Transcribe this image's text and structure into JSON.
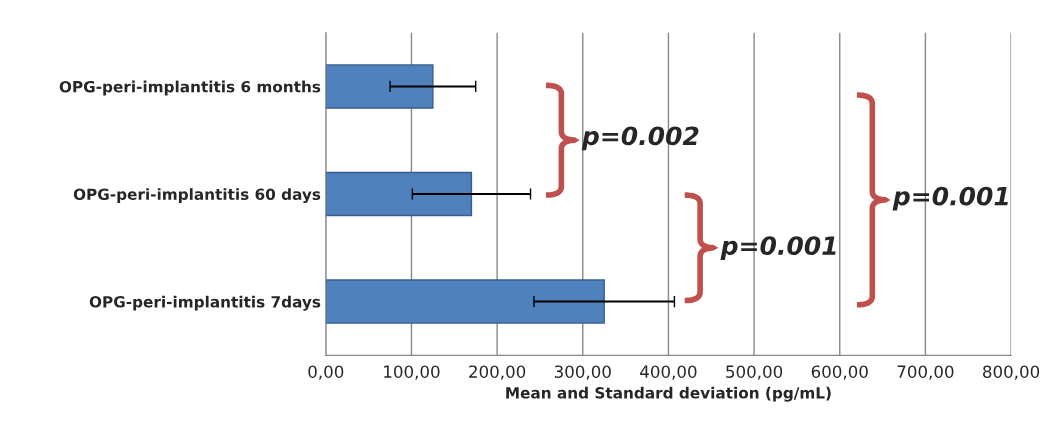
{
  "chart_data": {
    "type": "bar",
    "orientation": "horizontal",
    "xlabel": "Mean and Standard deviation (pg/mL)",
    "categories": [
      "OPG-peri-implantitis 6 months",
      "OPG-peri-implantitis 60 days",
      "OPG-peri-implantitis 7days"
    ],
    "values": [
      125,
      170,
      325
    ],
    "errors": [
      50,
      69,
      82
    ],
    "color": "#4f81bd",
    "xlim": [
      0,
      800
    ],
    "xticks": [
      {
        "value": 0,
        "label": "0,00"
      },
      {
        "value": 100,
        "label": "100,00"
      },
      {
        "value": 200,
        "label": "200,00"
      },
      {
        "value": 300,
        "label": "300,00"
      },
      {
        "value": 400,
        "label": "400,00"
      },
      {
        "value": 500,
        "label": "500,00"
      },
      {
        "value": 600,
        "label": "600,00"
      },
      {
        "value": 700,
        "label": "700,00"
      },
      {
        "value": 800,
        "label": "800,00"
      }
    ],
    "grid": "x",
    "annotations": [
      "p=0.002",
      "p=0.001",
      "p=0.001"
    ]
  }
}
